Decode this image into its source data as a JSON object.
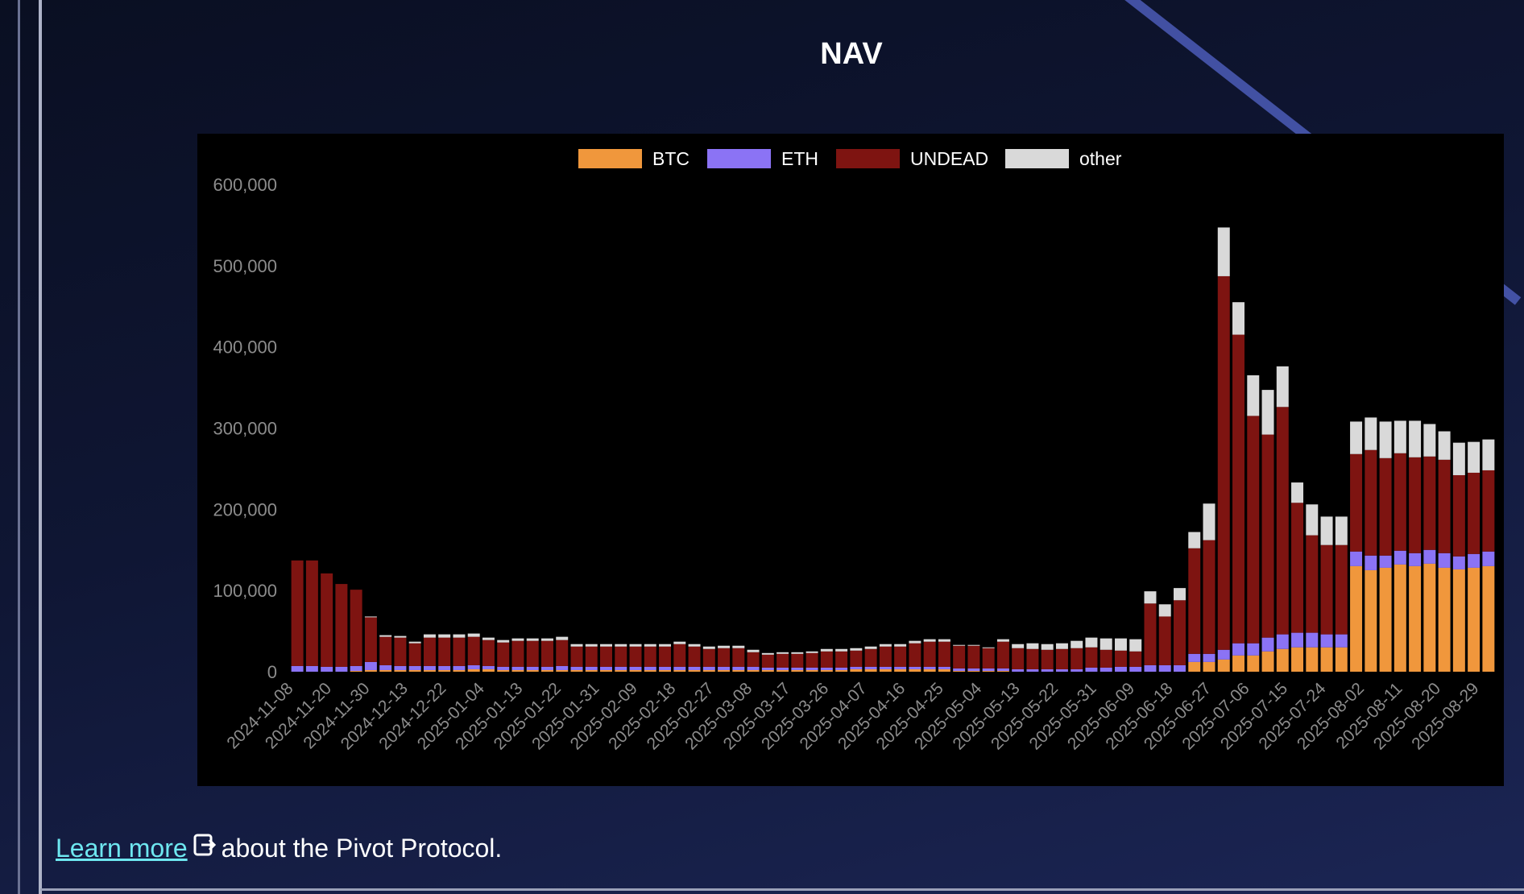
{
  "title": "NAV",
  "footer": {
    "link_text": "Learn more ",
    "link_icon": "external-link-icon",
    "rest_text": "about the Pivot Protocol."
  },
  "colors": {
    "BTC": "#f0973c",
    "ETH": "#8b73f5",
    "UNDEAD": "#7e1411",
    "other": "#d9d9d9",
    "link": "#6ee7f0"
  },
  "chart_data": {
    "type": "bar",
    "stacked": true,
    "title": "NAV",
    "legend_position": "top",
    "ylim": [
      0,
      600000
    ],
    "y_ticks": [
      "0",
      "100,000",
      "200,000",
      "300,000",
      "400,000",
      "500,000",
      "600,000"
    ],
    "x_tick_labels": [
      "2024-11-08",
      "2024-11-20",
      "2024-11-30",
      "2024-12-13",
      "2024-12-22",
      "2025-01-04",
      "2025-01-13",
      "2025-01-22",
      "2025-01-31",
      "2025-02-09",
      "2025-02-18",
      "2025-02-27",
      "2025-03-08",
      "2025-03-17",
      "2025-03-26",
      "2025-04-07",
      "2025-04-16",
      "2025-04-25",
      "2025-05-04",
      "2025-05-13",
      "2025-05-22",
      "2025-05-31",
      "2025-06-09",
      "2025-06-18",
      "2025-06-27",
      "2025-07-06",
      "2025-07-15",
      "2025-07-24",
      "2025-08-02",
      "2025-08-11",
      "2025-08-20",
      "2025-08-29"
    ],
    "categories": [
      "2024-11-08",
      "2024-11-12",
      "2024-11-16",
      "2024-11-20",
      "2024-11-25",
      "2024-11-30",
      "2024-12-05",
      "2024-12-09",
      "2024-12-13",
      "2024-12-18",
      "2024-12-22",
      "2024-12-28",
      "2025-01-04",
      "2025-01-08",
      "2025-01-13",
      "2025-01-17",
      "2025-01-22",
      "2025-01-26",
      "2025-01-31",
      "2025-02-04",
      "2025-02-09",
      "2025-02-13",
      "2025-02-18",
      "2025-02-22",
      "2025-02-27",
      "2025-03-03",
      "2025-03-08",
      "2025-03-12",
      "2025-03-17",
      "2025-03-21",
      "2025-03-26",
      "2025-04-01",
      "2025-04-07",
      "2025-04-11",
      "2025-04-16",
      "2025-04-20",
      "2025-04-25",
      "2025-04-29",
      "2025-05-04",
      "2025-05-08",
      "2025-05-13",
      "2025-05-17",
      "2025-05-22",
      "2025-05-26",
      "2025-05-31",
      "2025-06-04",
      "2025-06-09",
      "2025-06-13",
      "2025-06-18",
      "2025-06-22",
      "2025-06-27",
      "2025-07-01",
      "2025-07-06",
      "2025-07-10",
      "2025-07-15",
      "2025-07-19",
      "2025-07-24",
      "2025-07-28",
      "2025-08-02",
      "2025-08-04",
      "2025-08-06",
      "2025-08-08",
      "2025-08-09",
      "2025-08-10",
      "2025-08-11",
      "2025-08-12",
      "2025-08-13",
      "2025-08-14",
      "2025-08-15",
      "2025-08-16",
      "2025-08-17",
      "2025-08-18",
      "2025-08-19",
      "2025-08-20",
      "2025-08-22",
      "2025-08-24",
      "2025-08-26",
      "2025-08-27",
      "2025-08-28",
      "2025-08-29",
      "2025-08-30",
      "2025-08-31"
    ],
    "series": [
      {
        "name": "BTC",
        "values": [
          0,
          0,
          0,
          0,
          1000,
          2000,
          2000,
          2000,
          2000,
          2000,
          2000,
          2000,
          3000,
          3000,
          2000,
          2000,
          2000,
          2000,
          2000,
          2000,
          2000,
          2000,
          2000,
          2000,
          2000,
          2000,
          2000,
          2000,
          2000,
          2000,
          2000,
          2000,
          2000,
          2000,
          2000,
          2000,
          2000,
          2000,
          3000,
          3000,
          3000,
          3000,
          3000,
          3000,
          3000,
          1000,
          1000,
          1000,
          1000,
          0,
          0,
          0,
          0,
          0,
          0,
          0,
          0,
          0,
          0,
          0,
          0,
          12000,
          12000,
          15000,
          20000,
          20000,
          25000,
          28000,
          30000,
          30000,
          30000,
          30000,
          130000,
          125000,
          128000,
          132000,
          130000,
          133000,
          128000,
          126000,
          128000,
          130000
        ]
      },
      {
        "name": "ETH",
        "values": [
          7000,
          7000,
          6000,
          6000,
          6000,
          10000,
          6000,
          5000,
          5000,
          5000,
          5000,
          5000,
          5000,
          4000,
          4000,
          4000,
          4000,
          4000,
          5000,
          4000,
          4000,
          4000,
          4000,
          4000,
          4000,
          4000,
          4000,
          4000,
          4000,
          4000,
          4000,
          4000,
          3000,
          3000,
          3000,
          3000,
          3000,
          3000,
          3000,
          3000,
          3000,
          3000,
          3000,
          3000,
          3000,
          3000,
          3000,
          3000,
          3000,
          3000,
          3000,
          3000,
          3000,
          3000,
          5000,
          5000,
          6000,
          6000,
          8000,
          8000,
          8000,
          10000,
          10000,
          12000,
          15000,
          15000,
          17000,
          18000,
          18000,
          18000,
          16000,
          16000,
          18000,
          18000,
          15000,
          17000,
          16000,
          17000,
          18000,
          16000,
          17000,
          18000
        ]
      },
      {
        "name": "UNDEAD",
        "values": [
          130000,
          130000,
          115000,
          102000,
          94000,
          55000,
          35000,
          35000,
          28000,
          35000,
          35000,
          35000,
          35000,
          32000,
          30000,
          32000,
          32000,
          32000,
          32000,
          25000,
          25000,
          25000,
          25000,
          25000,
          25000,
          25000,
          28000,
          25000,
          22000,
          23000,
          23000,
          18000,
          16000,
          17000,
          17000,
          18000,
          20000,
          20000,
          20000,
          22000,
          25000,
          25000,
          29000,
          31000,
          31000,
          28000,
          28000,
          25000,
          33000,
          26000,
          25000,
          24000,
          25000,
          26000,
          25000,
          22000,
          20000,
          19000,
          76000,
          60000,
          80000,
          130000,
          140000,
          460000,
          380000,
          280000,
          250000,
          280000,
          160000,
          120000,
          110000,
          110000,
          120000,
          130000,
          120000,
          120000,
          118000,
          115000,
          115000,
          100000,
          100000,
          100000
        ]
      },
      {
        "name": "other",
        "values": [
          0,
          0,
          0,
          0,
          0,
          1000,
          2000,
          2000,
          2000,
          4000,
          4000,
          4000,
          4000,
          3000,
          3000,
          3000,
          3000,
          3000,
          4000,
          3000,
          3000,
          3000,
          3000,
          3000,
          3000,
          3000,
          3000,
          3000,
          3000,
          3000,
          3000,
          3000,
          2000,
          2000,
          2000,
          2000,
          3000,
          3000,
          3000,
          3000,
          3000,
          3000,
          3000,
          3000,
          3000,
          1000,
          1000,
          1000,
          3000,
          5000,
          7000,
          7000,
          7000,
          9000,
          12000,
          14000,
          15000,
          15000,
          15000,
          15000,
          15000,
          20000,
          45000,
          60000,
          40000,
          50000,
          55000,
          50000,
          25000,
          38000,
          35000,
          35000,
          40000,
          40000,
          45000,
          40000,
          45000,
          40000,
          35000,
          40000,
          38000,
          38000
        ]
      }
    ]
  }
}
